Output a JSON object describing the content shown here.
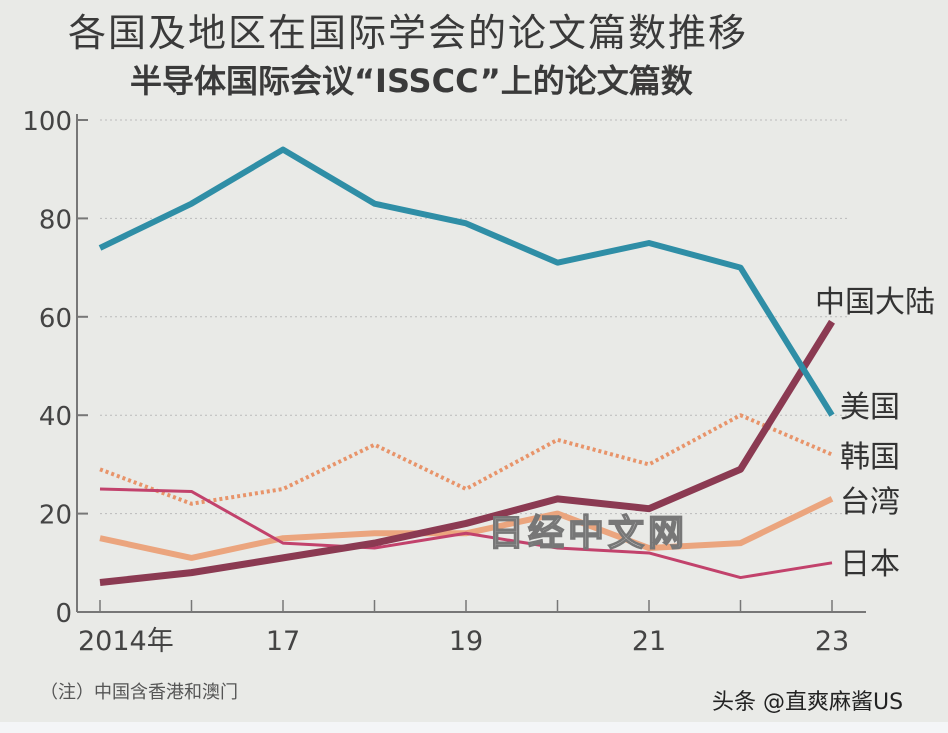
{
  "title": "各国及地区在国际学会的论文篇数推移",
  "subtitle": "半导体国际会议“ISSCC”上的论文篇数",
  "note": "（注）中国含香港和澳门",
  "watermark": "日经中文网",
  "credit": "头条 @直爽麻酱US",
  "chart_data": {
    "type": "line",
    "categories": [
      "2014年",
      "",
      "17",
      "",
      "19",
      "",
      "21",
      "",
      "23"
    ],
    "ylim": [
      0,
      100
    ],
    "yticks": [
      "0",
      "20",
      "40",
      "60",
      "80",
      "100"
    ],
    "grid": true,
    "series": [
      {
        "name": "美国",
        "color": "#2f8ea6",
        "style": "solid",
        "values": [
          74,
          83,
          94,
          83,
          79,
          71,
          75,
          70,
          40
        ]
      },
      {
        "name": "韩国",
        "color": "#e8946a",
        "style": "dotted",
        "values": [
          29,
          22,
          25,
          34,
          25,
          35,
          30,
          40,
          32
        ]
      },
      {
        "name": "台湾",
        "color": "#eba57e",
        "style": "solid",
        "values": [
          15,
          11,
          15,
          16,
          16,
          20,
          13,
          14,
          23
        ]
      },
      {
        "name": "日本",
        "color": "#c2426c",
        "style": "solid",
        "values": [
          25,
          24.5,
          14,
          13,
          16,
          13,
          12,
          7,
          10
        ]
      },
      {
        "name": "中国大陆",
        "color": "#8b3a52",
        "style": "solid",
        "values": [
          6,
          8,
          11,
          14,
          18,
          23,
          21,
          29,
          59
        ]
      }
    ]
  }
}
